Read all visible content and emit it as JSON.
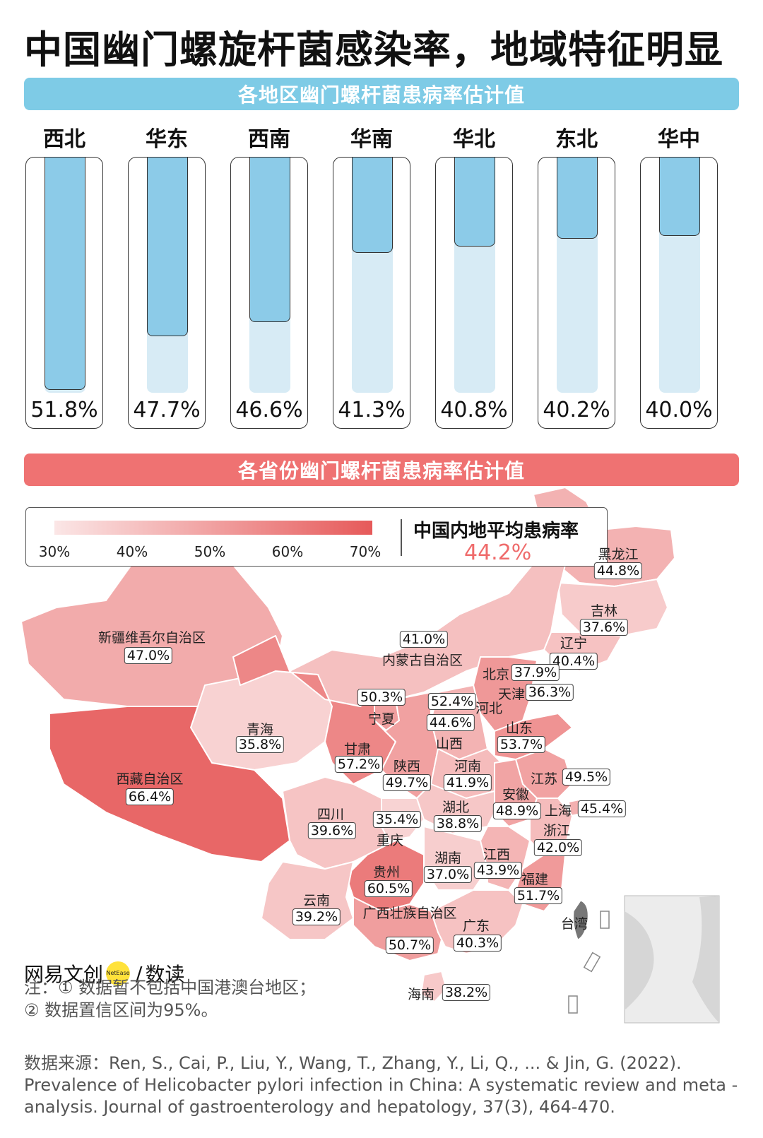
{
  "title": "中国幽门螺旋杆菌感染率，地域特征明显",
  "region_banner": "各地区幽门螺杆菌患病率估计值",
  "province_banner": "各省份幽门螺杆菌患病率估计值",
  "chart_data": [
    {
      "type": "bar",
      "title": "各地区幽门螺杆菌患病率估计值",
      "categories": [
        "西北",
        "华东",
        "西南",
        "华南",
        "华北",
        "东北",
        "华中"
      ],
      "values": [
        51.8,
        47.7,
        46.6,
        41.3,
        40.8,
        40.2,
        40.0
      ],
      "value_labels": [
        "51.8%",
        "47.7%",
        "46.6%",
        "41.3%",
        "40.8%",
        "40.2%",
        "40.0%"
      ],
      "ylim": [
        0,
        100
      ]
    },
    {
      "type": "heatmap",
      "title": "各省份幽门螺杆菌患病率估计值",
      "color_scale": {
        "ticks": [
          "30%",
          "40%",
          "50%",
          "60%",
          "70%"
        ],
        "low": "#fbe6e6",
        "high": "#e65a5a",
        "range": [
          30,
          70
        ]
      },
      "average_label": "中国内地平均患病率",
      "average_value": "44.2%",
      "provinces": [
        {
          "name": "黑龙江",
          "value": "44.8%"
        },
        {
          "name": "吉林",
          "value": "37.6%"
        },
        {
          "name": "辽宁",
          "value": "40.4%"
        },
        {
          "name": "新疆维吾尔自治区",
          "value": "47.0%"
        },
        {
          "name": "内蒙古自治区",
          "value": "41.0%"
        },
        {
          "name": "北京",
          "value": "37.9%"
        },
        {
          "name": "天津",
          "value": "36.3%"
        },
        {
          "name": "河北",
          "value": "52.4%"
        },
        {
          "name": "山西",
          "value": "44.6%"
        },
        {
          "name": "宁夏",
          "value": "50.3%"
        },
        {
          "name": "青海",
          "value": "35.8%"
        },
        {
          "name": "甘肃",
          "value": "57.2%"
        },
        {
          "name": "山东",
          "value": "53.7%"
        },
        {
          "name": "西藏自治区",
          "value": "66.4%"
        },
        {
          "name": "陕西",
          "value": "49.7%"
        },
        {
          "name": "河南",
          "value": "41.9%"
        },
        {
          "name": "江苏",
          "value": "49.5%"
        },
        {
          "name": "安徽",
          "value": "48.9%"
        },
        {
          "name": "上海",
          "value": "45.4%"
        },
        {
          "name": "四川",
          "value": "39.6%"
        },
        {
          "name": "重庆",
          "value": "35.4%"
        },
        {
          "name": "湖北",
          "value": "38.8%"
        },
        {
          "name": "浙江",
          "value": "42.0%"
        },
        {
          "name": "湖南",
          "value": "37.0%"
        },
        {
          "name": "江西",
          "value": "43.9%"
        },
        {
          "name": "贵州",
          "value": "60.5%"
        },
        {
          "name": "福建",
          "value": "51.7%"
        },
        {
          "name": "云南",
          "value": "39.2%"
        },
        {
          "name": "广西壮族自治区",
          "value": "50.7%"
        },
        {
          "name": "广东",
          "value": "40.3%"
        },
        {
          "name": "海南",
          "value": "38.2%"
        }
      ],
      "unlabeled_region": "台湾"
    }
  ],
  "logo": {
    "brand": "网易文创",
    "dot": "NetEase",
    "suffix": "数读"
  },
  "notes": [
    "注：① 数据暂不包括中国港澳台地区；",
    "② 数据置信区间为95%。"
  ],
  "source": "数据来源：Ren, S., Cai, P., Liu, Y., Wang, T., Zhang, Y., Li, Q., ... & Jin, G. (2022). Prevalence of Helicobacter pylori infection in China: A systematic review and meta - analysis. Journal of gastroenterology and hepatology, 37(3), 464-470.",
  "colors": {
    "blue": "#7ecbe6",
    "red": "#ef7272"
  }
}
